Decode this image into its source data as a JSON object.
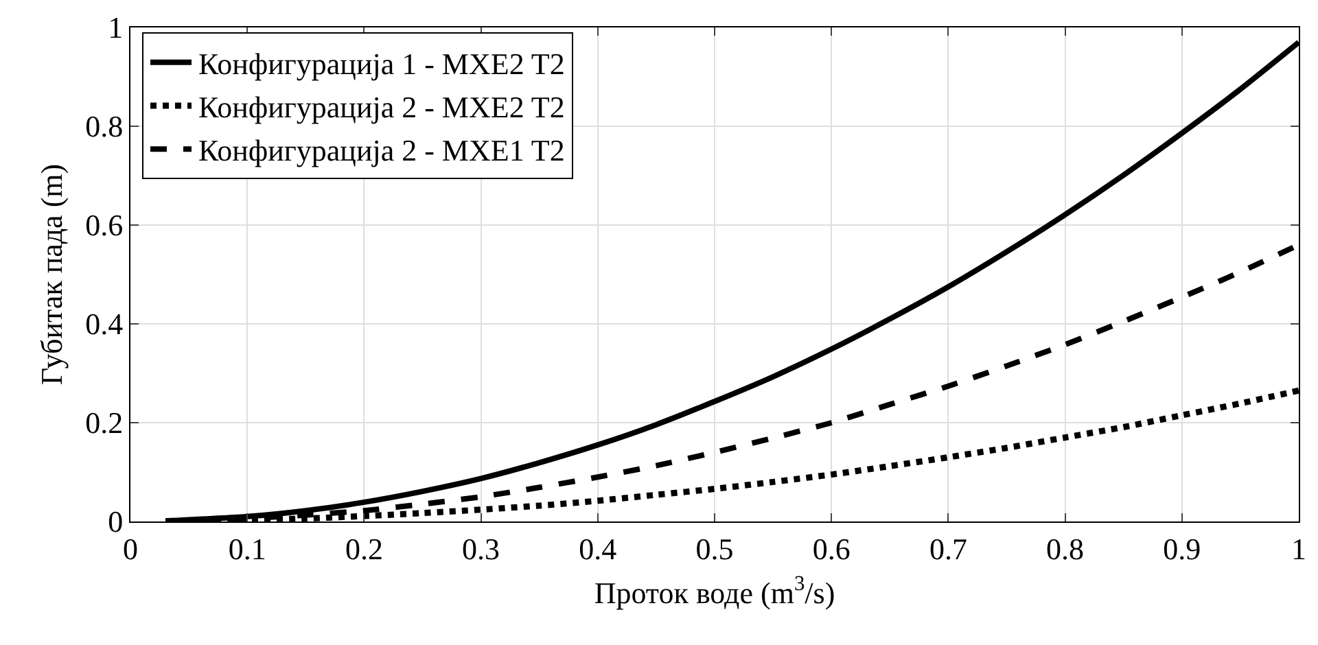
{
  "chart_data": {
    "type": "line",
    "xlabel": "Проток воде (m$^{3}$/s)",
    "ylabel": "Губитак пада (m)",
    "x": [
      0.03,
      0.1,
      0.15,
      0.2,
      0.25,
      0.3,
      0.35,
      0.4,
      0.45,
      0.5,
      0.55,
      0.6,
      0.65,
      0.7,
      0.75,
      0.8,
      0.85,
      0.9,
      0.95,
      1
    ],
    "series": [
      {
        "name": "Конфигурација 1 - MXE2 T2",
        "color": "#000000",
        "line_style": "solid",
        "values": [
          0.001,
          0.01,
          0.022,
          0.039,
          0.061,
          0.087,
          0.119,
          0.155,
          0.196,
          0.243,
          0.293,
          0.349,
          0.41,
          0.475,
          0.546,
          0.621,
          0.701,
          0.786,
          0.875,
          0.97
        ]
      },
      {
        "name": "Конфигурација 2 - MXE2 T2",
        "color": "#000000",
        "line_style": "dotted",
        "values": [
          0,
          0.003,
          0.006,
          0.011,
          0.017,
          0.024,
          0.032,
          0.042,
          0.054,
          0.066,
          0.08,
          0.095,
          0.112,
          0.13,
          0.149,
          0.17,
          0.191,
          0.215,
          0.239,
          0.265
        ]
      },
      {
        "name": "Конфигурација 2 - MXE1 T2",
        "color": "#000000",
        "line_style": "dashed",
        "values": [
          0,
          0.006,
          0.013,
          0.022,
          0.035,
          0.05,
          0.069,
          0.09,
          0.113,
          0.14,
          0.169,
          0.2,
          0.237,
          0.274,
          0.315,
          0.358,
          0.405,
          0.454,
          0.505,
          0.56
        ]
      }
    ],
    "xlim": [
      0,
      1
    ],
    "xticks": [
      0,
      0.1,
      0.2,
      0.3,
      0.4,
      0.5,
      0.6,
      0.7,
      0.8,
      0.9,
      1
    ],
    "ylim": [
      0,
      1
    ],
    "yticks": [
      0,
      0.2,
      0.4,
      0.6,
      0.8,
      1
    ],
    "grid": true,
    "legend": "top left",
    "marker": "none"
  }
}
